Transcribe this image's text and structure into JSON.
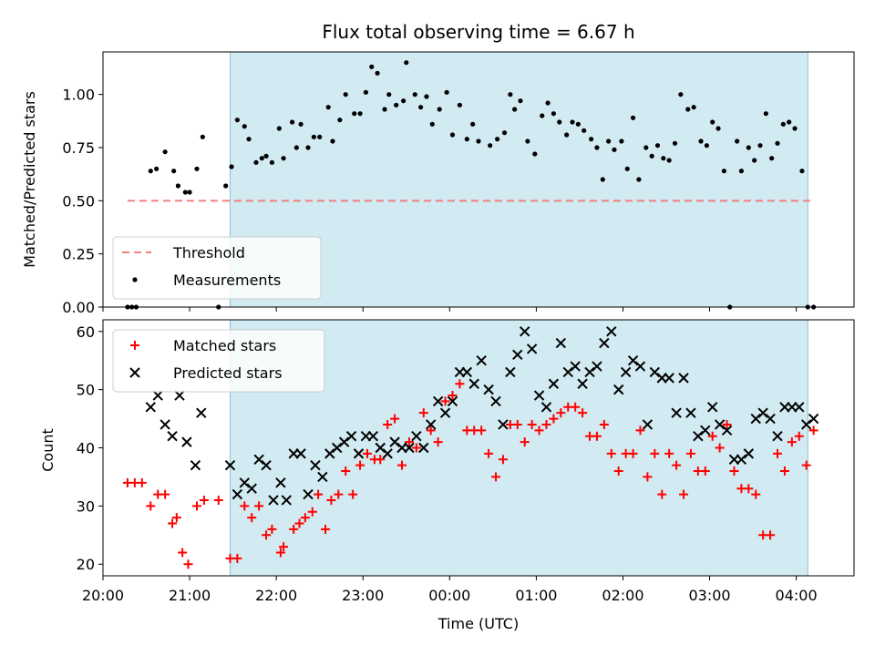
{
  "chart_data": [
    {
      "type": "scatter",
      "title": "Flux total observing time = 6.67 h",
      "xlabel": "",
      "ylabel": "Matched/Predicted stars",
      "xlim": [
        "20:00",
        "04:40"
      ],
      "ylim": [
        0,
        1.2
      ],
      "x_tick_labels": [
        "20:00",
        "21:00",
        "22:00",
        "23:00",
        "00:00",
        "01:00",
        "02:00",
        "03:00",
        "04:00"
      ],
      "y_ticks": [
        0.0,
        0.25,
        0.5,
        0.75,
        1.0
      ],
      "y_tick_labels": [
        "0.00",
        "0.25",
        "0.50",
        "0.75",
        "1.00"
      ],
      "shaded_interval": {
        "start": "21:28",
        "end": "04:08",
        "color": "#add8e6"
      },
      "legend": {
        "placement": "lower-left",
        "entries": [
          "Threshold",
          "Measurements"
        ]
      },
      "threshold": {
        "name": "Threshold",
        "value": 0.5,
        "x_start": "20:17",
        "x_end": "04:12",
        "color": "#f08080",
        "style": "dashed"
      },
      "series": [
        {
          "name": "Measurements",
          "color": "#000000",
          "marker": "dot",
          "x": [
            "20:17",
            "20:20",
            "20:23",
            "20:33",
            "20:37",
            "20:43",
            "20:49",
            "20:52",
            "20:57",
            "21:00",
            "21:05",
            "21:09",
            "21:20",
            "21:25",
            "21:29",
            "21:33",
            "21:38",
            "21:41",
            "21:46",
            "21:50",
            "21:53",
            "21:57",
            "22:02",
            "22:05",
            "22:11",
            "22:14",
            "22:17",
            "22:22",
            "22:26",
            "22:30",
            "22:36",
            "22:39",
            "22:44",
            "22:48",
            "22:54",
            "22:58",
            "23:02",
            "23:06",
            "23:10",
            "23:15",
            "23:18",
            "23:23",
            "23:28",
            "23:30",
            "23:36",
            "23:40",
            "23:44",
            "23:48",
            "23:53",
            "23:58",
            "24:02",
            "24:07",
            "24:12",
            "24:16",
            "24:20",
            "24:28",
            "24:33",
            "24:38",
            "24:42",
            "24:45",
            "24:49",
            "24:54",
            "24:59",
            "25:04",
            "25:08",
            "25:12",
            "25:16",
            "25:21",
            "25:25",
            "25:29",
            "25:33",
            "25:38",
            "25:42",
            "25:46",
            "25:50",
            "25:54",
            "25:59",
            "26:03",
            "26:07",
            "26:11",
            "26:16",
            "26:20",
            "26:24",
            "26:28",
            "26:32",
            "26:36",
            "26:40",
            "26:45",
            "26:49",
            "26:54",
            "26:58",
            "27:02",
            "27:06",
            "27:10",
            "27:14",
            "27:19",
            "27:22",
            "27:27",
            "27:31",
            "27:35",
            "27:39",
            "27:43",
            "27:47",
            "27:51",
            "27:55",
            "27:59",
            "28:04",
            "28:08",
            "28:12"
          ],
          "y": [
            0.0,
            0.0,
            0.0,
            0.64,
            0.65,
            0.73,
            0.64,
            0.57,
            0.54,
            0.54,
            0.65,
            0.8,
            0.0,
            0.57,
            0.66,
            0.88,
            0.85,
            0.79,
            0.68,
            0.7,
            0.71,
            0.68,
            0.84,
            0.7,
            0.87,
            0.75,
            0.86,
            0.75,
            0.8,
            0.8,
            0.94,
            0.78,
            0.88,
            1.0,
            0.91,
            0.91,
            1.01,
            1.13,
            1.1,
            0.93,
            1.0,
            0.95,
            0.97,
            1.15,
            1.0,
            0.94,
            0.99,
            0.86,
            0.93,
            1.01,
            0.81,
            0.95,
            0.79,
            0.86,
            0.78,
            0.76,
            0.79,
            0.82,
            1.0,
            0.93,
            0.97,
            0.78,
            0.72,
            0.9,
            0.96,
            0.91,
            0.87,
            0.81,
            0.87,
            0.86,
            0.83,
            0.79,
            0.75,
            0.6,
            0.78,
            0.74,
            0.78,
            0.65,
            0.89,
            0.6,
            0.75,
            0.71,
            0.76,
            0.7,
            0.69,
            0.77,
            1.0,
            0.93,
            0.94,
            0.78,
            0.76,
            0.87,
            0.84,
            0.64,
            0.0,
            0.78,
            0.64,
            0.75,
            0.69,
            0.76,
            0.91,
            0.7,
            0.77,
            0.86,
            0.87,
            0.84,
            0.64,
            0.0,
            0.0
          ]
        }
      ]
    },
    {
      "type": "scatter",
      "title": "",
      "xlabel": "Time (UTC)",
      "ylabel": "Count",
      "xlim": [
        "20:00",
        "04:40"
      ],
      "ylim": [
        18,
        62
      ],
      "x_tick_labels": [
        "20:00",
        "21:00",
        "22:00",
        "23:00",
        "00:00",
        "01:00",
        "02:00",
        "03:00",
        "04:00"
      ],
      "y_ticks": [
        20,
        30,
        40,
        50,
        60
      ],
      "y_tick_labels": [
        "20",
        "30",
        "40",
        "50",
        "60"
      ],
      "shaded_interval": {
        "start": "21:28",
        "end": "04:08",
        "color": "#add8e6"
      },
      "legend": {
        "placement": "upper-left",
        "entries": [
          "Matched stars",
          "Predicted stars"
        ]
      },
      "series": [
        {
          "name": "Matched stars",
          "color": "#ff0000",
          "marker": "plus",
          "x": [
            "20:17",
            "20:22",
            "20:27",
            "20:33",
            "20:38",
            "20:43",
            "20:48",
            "20:51",
            "20:55",
            "20:59",
            "21:05",
            "21:10",
            "21:20",
            "21:28",
            "21:33",
            "21:38",
            "21:43",
            "21:48",
            "21:53",
            "21:57",
            "22:03",
            "22:05",
            "22:12",
            "22:16",
            "22:20",
            "22:25",
            "22:29",
            "22:34",
            "22:38",
            "22:43",
            "22:48",
            "22:53",
            "22:58",
            "23:03",
            "23:08",
            "23:12",
            "23:17",
            "23:22",
            "23:27",
            "23:32",
            "23:37",
            "23:42",
            "23:47",
            "23:52",
            "23:57",
            "24:02",
            "24:07",
            "24:12",
            "24:17",
            "24:22",
            "24:27",
            "24:32",
            "24:37",
            "24:42",
            "24:47",
            "24:52",
            "24:57",
            "25:02",
            "25:07",
            "25:12",
            "25:17",
            "25:22",
            "25:27",
            "25:32",
            "25:37",
            "25:42",
            "25:47",
            "25:52",
            "25:57",
            "26:02",
            "26:07",
            "26:12",
            "26:17",
            "26:22",
            "26:27",
            "26:32",
            "26:37",
            "26:42",
            "26:47",
            "26:52",
            "26:57",
            "27:02",
            "27:07",
            "27:12",
            "27:17",
            "27:22",
            "27:27",
            "27:32",
            "27:37",
            "27:42",
            "27:47",
            "27:52",
            "27:57",
            "28:02",
            "28:07",
            "28:12"
          ],
          "y": [
            34,
            34,
            34,
            30,
            32,
            32,
            27,
            28,
            22,
            20,
            30,
            31,
            31,
            21,
            21,
            30,
            28,
            30,
            25,
            26,
            22,
            23,
            26,
            27,
            28,
            29,
            32,
            26,
            31,
            32,
            36,
            32,
            37,
            39,
            38,
            38,
            44,
            45,
            37,
            41,
            40,
            46,
            43,
            41,
            48,
            49,
            51,
            43,
            43,
            43,
            39,
            35,
            38,
            44,
            44,
            41,
            44,
            43,
            44,
            45,
            46,
            47,
            47,
            46,
            42,
            42,
            44,
            39,
            36,
            39,
            39,
            43,
            35,
            39,
            32,
            39,
            37,
            32,
            39,
            36,
            36,
            42,
            40,
            44,
            36,
            33,
            33,
            32,
            25,
            25,
            39,
            36,
            41,
            42,
            37,
            43
          ]
        },
        {
          "name": "Predicted stars",
          "color": "#000000",
          "marker": "x",
          "x": [
            "20:33",
            "20:38",
            "20:43",
            "20:48",
            "20:53",
            "20:58",
            "21:04",
            "21:08",
            "21:28",
            "21:33",
            "21:38",
            "21:43",
            "21:48",
            "21:53",
            "21:58",
            "22:03",
            "22:07",
            "22:12",
            "22:17",
            "22:22",
            "22:27",
            "22:32",
            "22:37",
            "22:42",
            "22:47",
            "22:52",
            "22:57",
            "23:02",
            "23:07",
            "23:12",
            "23:17",
            "23:22",
            "23:27",
            "23:32",
            "23:37",
            "23:42",
            "23:47",
            "23:52",
            "23:57",
            "24:02",
            "24:07",
            "24:12",
            "24:17",
            "24:22",
            "24:27",
            "24:32",
            "24:37",
            "24:42",
            "24:47",
            "24:52",
            "24:57",
            "25:02",
            "25:07",
            "25:12",
            "25:17",
            "25:22",
            "25:27",
            "25:32",
            "25:37",
            "25:42",
            "25:47",
            "25:52",
            "25:57",
            "26:02",
            "26:07",
            "26:12",
            "26:17",
            "26:22",
            "26:27",
            "26:32",
            "26:37",
            "26:42",
            "26:47",
            "26:52",
            "26:57",
            "27:02",
            "27:07",
            "27:12",
            "27:17",
            "27:22",
            "27:27",
            "27:32",
            "27:37",
            "27:42",
            "27:47",
            "27:52",
            "27:57",
            "28:02",
            "28:07",
            "28:12"
          ],
          "y": [
            47,
            49,
            44,
            42,
            49,
            41,
            37,
            46,
            37,
            32,
            34,
            33,
            38,
            37,
            31,
            34,
            31,
            39,
            39,
            32,
            37,
            35,
            39,
            40,
            41,
            42,
            39,
            42,
            42,
            40,
            39,
            41,
            40,
            40,
            42,
            40,
            44,
            48,
            46,
            48,
            53,
            53,
            51,
            55,
            50,
            48,
            44,
            53,
            56,
            60,
            57,
            49,
            47,
            51,
            58,
            53,
            54,
            51,
            53,
            54,
            58,
            60,
            50,
            53,
            55,
            54,
            44,
            53,
            52,
            52,
            46,
            52,
            46,
            42,
            43,
            47,
            44,
            43,
            38,
            38,
            39,
            45,
            46,
            45,
            42,
            47,
            47,
            47,
            44,
            45
          ]
        }
      ]
    }
  ]
}
